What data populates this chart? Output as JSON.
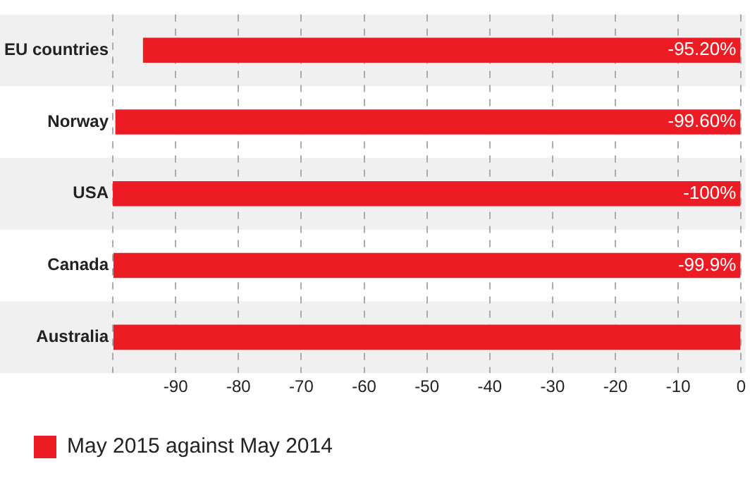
{
  "chart_data": {
    "type": "bar",
    "orientation": "horizontal",
    "categories": [
      "EU countries",
      "Norway",
      "USA",
      "Canada",
      "Australia"
    ],
    "series": [
      {
        "name": "May 2015 against May 2014",
        "color": "#ed1c24",
        "values": [
          -95.2,
          -99.6,
          -100,
          -99.9,
          -99.9
        ],
        "value_labels": [
          "-95.20%",
          "-99.60%",
          "-100%",
          "-99.9%",
          null
        ]
      }
    ],
    "xlim": [
      -100,
      0
    ],
    "xticks": [
      {
        "value": -100,
        "label": null
      },
      -90,
      -80,
      -70,
      -60,
      -50,
      -40,
      -30,
      -20,
      -10,
      0
    ],
    "grid": "x",
    "legend": "bottom left"
  }
}
